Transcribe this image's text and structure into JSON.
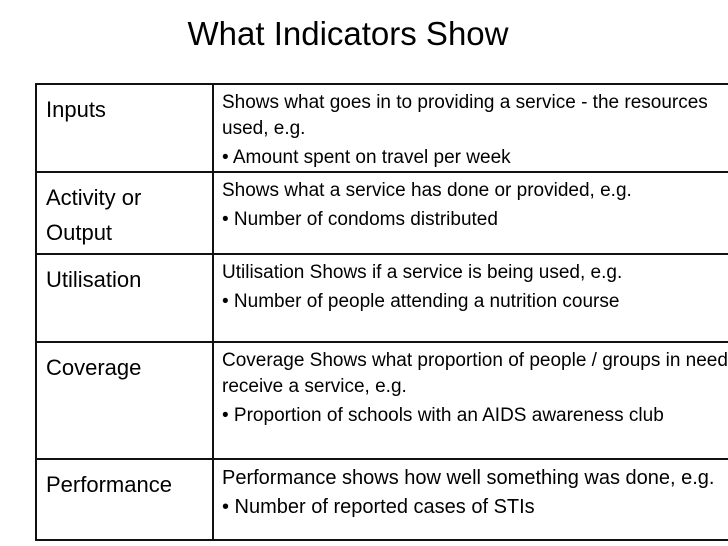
{
  "slide": {
    "title": "What Indicators Show"
  },
  "table": {
    "rows": [
      {
        "label": "Inputs",
        "description": "Shows what goes in to providing a service - the resources used, e.g.",
        "bullet": "• Amount spent on travel per week"
      },
      {
        "label": "Activity or Output",
        "description": "Shows what a service has done or provided, e.g.",
        "bullet": "• Number of condoms distributed"
      },
      {
        "label": "Utilisation",
        "description": "Utilisation Shows if a service is being used, e.g.",
        "bullet": "• Number of people attending a nutrition course"
      },
      {
        "label": "Coverage",
        "description": "Coverage Shows what proportion of people / groups in need receive a service, e.g.",
        "bullet": "• Proportion of schools with an AIDS awareness club"
      },
      {
        "label": "Performance",
        "description": "Performance shows how well something was done, e.g.",
        "bullet": "• Number of reported cases of STIs"
      }
    ]
  },
  "colors": {
    "background": "#ffffff",
    "text": "#000000",
    "table_border": "#111111"
  }
}
